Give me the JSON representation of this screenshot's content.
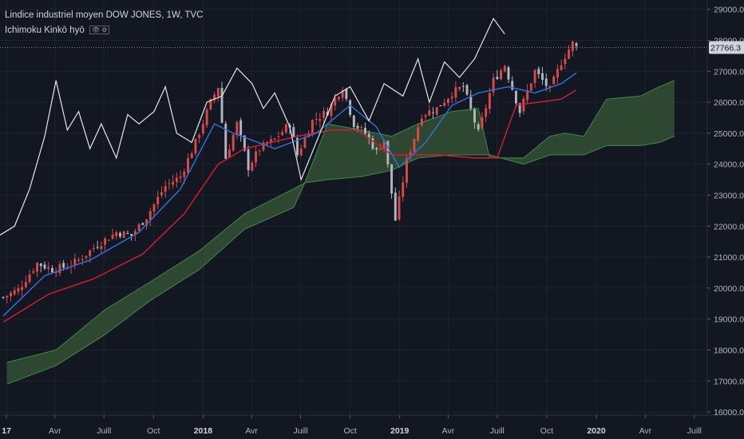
{
  "header": {
    "title": "Lindice industriel moyen DOW JONES, 1W, TVC",
    "indicator": "Ichimoku Kinkō hyō",
    "indicator_icons": "👁 ⚙"
  },
  "colors": {
    "background": "#131722",
    "grid": "#1e222d",
    "up_candle": "#d84a4a",
    "down_candle": "#b2b5be",
    "tenkan": "#2f6fd6",
    "kijun": "#d11b30",
    "chikou": "#e6e6e6",
    "cloud_bull": "#2e4a32",
    "cloud_bull_line": "#3f8a4a",
    "cloud_bear": "#5a3c36",
    "axis_text": "#b2b5be"
  },
  "chart_data": {
    "type": "candlestick_ichimoku",
    "title": "Lindice industriel moyen DOW JONES, 1W, TVC",
    "indicator": "Ichimoku Kinkō hyō",
    "x_range": [
      "2016-12-20",
      "2020-07-25"
    ],
    "ylim": [
      15900,
      29300
    ],
    "y_ticks": [
      16000,
      17000,
      18000,
      19000,
      20000,
      21000,
      22000,
      23000,
      24000,
      25000,
      26000,
      27000,
      28000,
      29000
    ],
    "y_tick_labels": [
      "16000.0",
      "17000.0",
      "18000.0",
      "19000.0",
      "20000.0",
      "21000.0",
      "22000.0",
      "23000.0",
      "24000.0",
      "25000.0",
      "26000.0",
      "27000.0",
      "28000.0",
      "29000.0"
    ],
    "x_ticks": [
      {
        "label": "17",
        "date": "2017-01-01",
        "year": true
      },
      {
        "label": "Avr",
        "date": "2017-04-01",
        "year": false
      },
      {
        "label": "Juill",
        "date": "2017-07-01",
        "year": false
      },
      {
        "label": "Oct",
        "date": "2017-10-01",
        "year": false
      },
      {
        "label": "2018",
        "date": "2018-01-01",
        "year": true
      },
      {
        "label": "Avr",
        "date": "2018-04-01",
        "year": false
      },
      {
        "label": "Juill",
        "date": "2018-07-01",
        "year": false
      },
      {
        "label": "Oct",
        "date": "2018-10-01",
        "year": false
      },
      {
        "label": "2019",
        "date": "2019-01-01",
        "year": true
      },
      {
        "label": "Avr",
        "date": "2019-04-01",
        "year": false
      },
      {
        "label": "Juill",
        "date": "2019-07-01",
        "year": false
      },
      {
        "label": "Oct",
        "date": "2019-10-01",
        "year": false
      },
      {
        "label": "2020",
        "date": "2020-01-01",
        "year": true
      },
      {
        "label": "Avr",
        "date": "2020-04-01",
        "year": false
      },
      {
        "label": "Juill",
        "date": "2020-07-01",
        "year": false
      }
    ],
    "last_price": 27766.3,
    "last_price_label": "27766.3",
    "price_anchors": [
      [
        "2016-12-26",
        19700
      ],
      [
        "2017-01-23",
        19950
      ],
      [
        "2017-02-27",
        20800
      ],
      [
        "2017-03-27",
        20600
      ],
      [
        "2017-04-24",
        20700
      ],
      [
        "2017-05-15",
        20900
      ],
      [
        "2017-06-19",
        21400
      ],
      [
        "2017-07-24",
        21800
      ],
      [
        "2017-08-21",
        21700
      ],
      [
        "2017-09-18",
        22300
      ],
      [
        "2017-10-23",
        23300
      ],
      [
        "2017-11-20",
        23600
      ],
      [
        "2017-12-18",
        24700
      ],
      [
        "2018-01-15",
        26000
      ],
      [
        "2018-01-29",
        26500
      ],
      [
        "2018-02-12",
        24200
      ],
      [
        "2018-03-05",
        25300
      ],
      [
        "2018-03-26",
        23900
      ],
      [
        "2018-04-16",
        24500
      ],
      [
        "2018-05-14",
        24800
      ],
      [
        "2018-06-11",
        25300
      ],
      [
        "2018-06-25",
        24300
      ],
      [
        "2018-07-23",
        25400
      ],
      [
        "2018-08-20",
        25700
      ],
      [
        "2018-09-17",
        26500
      ],
      [
        "2018-10-08",
        25300
      ],
      [
        "2018-10-29",
        25000
      ],
      [
        "2018-11-19",
        24400
      ],
      [
        "2018-12-03",
        24800
      ],
      [
        "2018-12-24",
        22200
      ],
      [
        "2019-01-14",
        24100
      ],
      [
        "2019-02-11",
        25600
      ],
      [
        "2019-03-11",
        25800
      ],
      [
        "2019-04-08",
        26300
      ],
      [
        "2019-04-29",
        26500
      ],
      [
        "2019-05-27",
        25000
      ],
      [
        "2019-06-24",
        26700
      ],
      [
        "2019-07-15",
        27200
      ],
      [
        "2019-08-12",
        25700
      ],
      [
        "2019-09-09",
        27000
      ],
      [
        "2019-10-07",
        26400
      ],
      [
        "2019-10-28",
        27300
      ],
      [
        "2019-11-18",
        27900
      ],
      [
        "2019-11-25",
        27766
      ]
    ],
    "tenkan_anchors": [
      [
        "2016-12-26",
        19100
      ],
      [
        "2017-03-13",
        20400
      ],
      [
        "2017-06-05",
        20900
      ],
      [
        "2017-09-04",
        21800
      ],
      [
        "2017-11-20",
        23200
      ],
      [
        "2018-01-22",
        25300
      ],
      [
        "2018-02-26",
        25000
      ],
      [
        "2018-05-14",
        24500
      ],
      [
        "2018-07-30",
        25000
      ],
      [
        "2018-10-01",
        25900
      ],
      [
        "2018-11-19",
        25200
      ],
      [
        "2018-12-31",
        23900
      ],
      [
        "2019-02-18",
        24700
      ],
      [
        "2019-04-08",
        25900
      ],
      [
        "2019-05-27",
        26300
      ],
      [
        "2019-07-22",
        26500
      ],
      [
        "2019-09-09",
        26300
      ],
      [
        "2019-10-28",
        26600
      ],
      [
        "2019-11-25",
        26950
      ]
    ],
    "kijun_anchors": [
      [
        "2016-12-26",
        18900
      ],
      [
        "2017-03-20",
        19800
      ],
      [
        "2017-06-12",
        20300
      ],
      [
        "2017-09-11",
        21100
      ],
      [
        "2017-11-27",
        22400
      ],
      [
        "2018-01-29",
        24000
      ],
      [
        "2018-03-19",
        24500
      ],
      [
        "2018-06-25",
        24900
      ],
      [
        "2018-08-27",
        25100
      ],
      [
        "2018-10-15",
        25100
      ],
      [
        "2018-12-17",
        24300
      ],
      [
        "2019-03-11",
        24300
      ],
      [
        "2019-05-20",
        24200
      ],
      [
        "2019-07-01",
        24200
      ],
      [
        "2019-08-05",
        25900
      ],
      [
        "2019-10-28",
        26100
      ],
      [
        "2019-11-25",
        26400
      ]
    ],
    "chikou_anchors": [
      [
        "2016-12-19",
        21700
      ],
      [
        "2017-01-16",
        22000
      ],
      [
        "2017-02-13",
        23200
      ],
      [
        "2017-03-13",
        24900
      ],
      [
        "2017-04-03",
        26700
      ],
      [
        "2017-04-24",
        25100
      ],
      [
        "2017-05-15",
        25700
      ],
      [
        "2017-06-05",
        24500
      ],
      [
        "2017-06-26",
        25300
      ],
      [
        "2017-07-24",
        24200
      ],
      [
        "2017-08-14",
        25600
      ],
      [
        "2017-09-04",
        25300
      ],
      [
        "2017-10-02",
        25700
      ],
      [
        "2017-10-23",
        26500
      ],
      [
        "2017-11-13",
        25000
      ],
      [
        "2017-12-11",
        24700
      ],
      [
        "2018-01-08",
        26000
      ],
      [
        "2018-02-05",
        26200
      ],
      [
        "2018-03-05",
        27100
      ],
      [
        "2018-04-02",
        26600
      ],
      [
        "2018-04-23",
        25800
      ],
      [
        "2018-05-14",
        26300
      ],
      [
        "2018-06-11",
        25200
      ],
      [
        "2018-07-02",
        23500
      ],
      [
        "2018-08-06",
        25000
      ],
      [
        "2018-09-03",
        26200
      ],
      [
        "2018-10-01",
        26500
      ],
      [
        "2018-11-05",
        25400
      ],
      [
        "2018-12-03",
        26600
      ],
      [
        "2019-01-07",
        26200
      ],
      [
        "2019-02-04",
        27400
      ],
      [
        "2019-02-25",
        26000
      ],
      [
        "2019-03-25",
        27300
      ],
      [
        "2019-04-22",
        26800
      ],
      [
        "2019-05-20",
        27400
      ],
      [
        "2019-06-24",
        28700
      ],
      [
        "2019-07-15",
        28200
      ]
    ],
    "span_a_anchors": [
      [
        "2017-01-02",
        17600
      ],
      [
        "2017-04-03",
        18000
      ],
      [
        "2017-07-03",
        19300
      ],
      [
        "2017-09-25",
        20200
      ],
      [
        "2017-12-25",
        21200
      ],
      [
        "2018-03-19",
        22400
      ],
      [
        "2018-06-18",
        23200
      ],
      [
        "2018-07-09",
        23400
      ],
      [
        "2018-08-20",
        25300
      ],
      [
        "2018-10-22",
        25100
      ],
      [
        "2018-12-17",
        24900
      ],
      [
        "2019-02-04",
        25300
      ],
      [
        "2019-04-08",
        25700
      ],
      [
        "2019-05-27",
        25800
      ],
      [
        "2019-06-17",
        24200
      ],
      [
        "2019-08-19",
        24200
      ],
      [
        "2019-10-07",
        24900
      ],
      [
        "2019-11-04",
        25000
      ],
      [
        "2019-12-09",
        24900
      ],
      [
        "2020-01-20",
        26100
      ],
      [
        "2020-03-23",
        26200
      ],
      [
        "2020-04-27",
        26500
      ],
      [
        "2020-05-25",
        26700
      ]
    ],
    "span_b_anchors": [
      [
        "2017-01-02",
        16900
      ],
      [
        "2017-04-03",
        17500
      ],
      [
        "2017-07-03",
        18500
      ],
      [
        "2017-09-25",
        19600
      ],
      [
        "2017-12-25",
        20600
      ],
      [
        "2018-03-19",
        21900
      ],
      [
        "2018-06-18",
        22600
      ],
      [
        "2018-07-09",
        23400
      ],
      [
        "2018-08-20",
        23500
      ],
      [
        "2018-10-22",
        23600
      ],
      [
        "2018-12-17",
        23800
      ],
      [
        "2019-02-04",
        24200
      ],
      [
        "2019-04-08",
        24300
      ],
      [
        "2019-05-27",
        24300
      ],
      [
        "2019-06-17",
        24300
      ],
      [
        "2019-08-19",
        24000
      ],
      [
        "2019-10-07",
        24300
      ],
      [
        "2019-11-04",
        24300
      ],
      [
        "2019-12-09",
        24300
      ],
      [
        "2020-01-20",
        24600
      ],
      [
        "2020-03-23",
        24600
      ],
      [
        "2020-04-27",
        24700
      ],
      [
        "2020-05-25",
        24900
      ]
    ]
  }
}
